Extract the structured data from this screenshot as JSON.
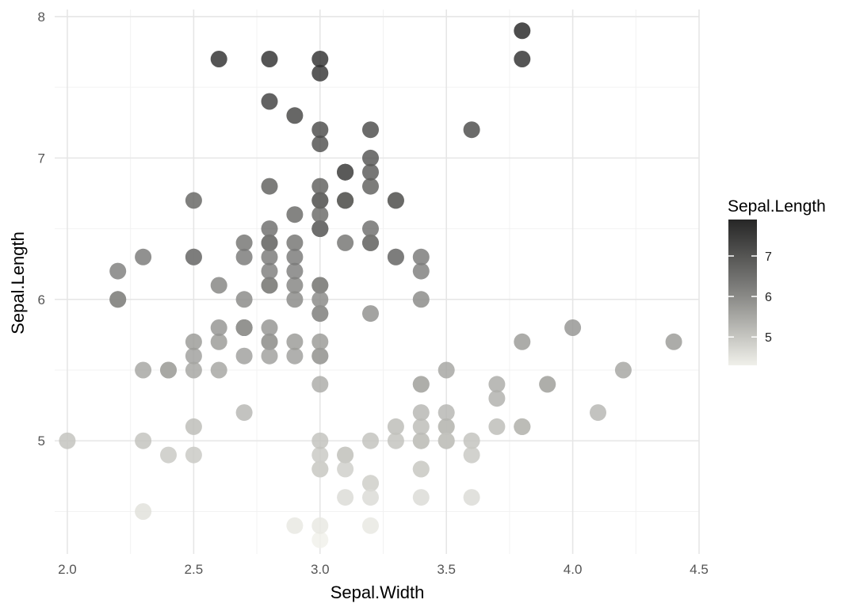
{
  "chart_data": {
    "type": "scatter",
    "title": "",
    "xlabel": "Sepal.Width",
    "ylabel": "Sepal.Length",
    "xlim": [
      1.95,
      4.5
    ],
    "ylim": [
      4.2,
      8.05
    ],
    "x_ticks": [
      "2.0",
      "2.5",
      "3.0",
      "3.5",
      "4.0",
      "4.5"
    ],
    "y_ticks": [
      "5",
      "6",
      "7",
      "8"
    ],
    "grid": true,
    "legend": {
      "title": "Sepal.Length",
      "placement": "right",
      "type": "continuous-gradient",
      "range": [
        4.3,
        7.9
      ],
      "ticks": [
        "5",
        "6",
        "7"
      ],
      "color_low": "#f0f0ea",
      "color_high": "#262626"
    },
    "point_opacity": 0.82,
    "points": [
      [
        3.5,
        5.1
      ],
      [
        3.0,
        4.9
      ],
      [
        3.2,
        4.7
      ],
      [
        3.1,
        4.6
      ],
      [
        3.6,
        5.0
      ],
      [
        3.9,
        5.4
      ],
      [
        3.4,
        4.6
      ],
      [
        3.4,
        5.0
      ],
      [
        2.9,
        4.4
      ],
      [
        3.1,
        4.9
      ],
      [
        3.7,
        5.4
      ],
      [
        3.4,
        4.8
      ],
      [
        3.0,
        4.8
      ],
      [
        3.0,
        4.3
      ],
      [
        4.0,
        5.8
      ],
      [
        4.4,
        5.7
      ],
      [
        3.9,
        5.4
      ],
      [
        3.5,
        5.1
      ],
      [
        3.8,
        5.7
      ],
      [
        3.8,
        5.1
      ],
      [
        3.4,
        5.4
      ],
      [
        3.7,
        5.1
      ],
      [
        3.6,
        4.6
      ],
      [
        3.3,
        5.1
      ],
      [
        3.4,
        4.8
      ],
      [
        3.0,
        5.0
      ],
      [
        3.4,
        5.0
      ],
      [
        3.5,
        5.2
      ],
      [
        3.4,
        5.2
      ],
      [
        3.2,
        4.7
      ],
      [
        3.1,
        4.8
      ],
      [
        3.4,
        5.4
      ],
      [
        4.1,
        5.2
      ],
      [
        4.2,
        5.5
      ],
      [
        3.1,
        4.9
      ],
      [
        3.2,
        5.0
      ],
      [
        3.5,
        5.5
      ],
      [
        3.6,
        4.9
      ],
      [
        3.0,
        4.4
      ],
      [
        3.4,
        5.1
      ],
      [
        3.5,
        5.0
      ],
      [
        2.3,
        4.5
      ],
      [
        3.2,
        4.4
      ],
      [
        3.5,
        5.0
      ],
      [
        3.8,
        5.1
      ],
      [
        3.0,
        4.8
      ],
      [
        3.8,
        5.1
      ],
      [
        3.2,
        4.6
      ],
      [
        3.7,
        5.3
      ],
      [
        3.3,
        5.0
      ],
      [
        3.2,
        7.0
      ],
      [
        3.2,
        6.4
      ],
      [
        3.1,
        6.9
      ],
      [
        2.3,
        5.5
      ],
      [
        2.8,
        6.5
      ],
      [
        2.8,
        5.7
      ],
      [
        3.3,
        6.3
      ],
      [
        2.4,
        4.9
      ],
      [
        2.9,
        6.6
      ],
      [
        2.7,
        5.2
      ],
      [
        2.0,
        5.0
      ],
      [
        3.0,
        5.9
      ],
      [
        2.2,
        6.0
      ],
      [
        2.9,
        6.1
      ],
      [
        2.9,
        5.6
      ],
      [
        3.1,
        6.7
      ],
      [
        3.0,
        5.6
      ],
      [
        2.7,
        5.8
      ],
      [
        2.2,
        6.2
      ],
      [
        2.5,
        5.6
      ],
      [
        3.2,
        5.9
      ],
      [
        2.8,
        6.1
      ],
      [
        2.5,
        6.3
      ],
      [
        2.8,
        6.1
      ],
      [
        2.9,
        6.4
      ],
      [
        3.0,
        6.6
      ],
      [
        2.8,
        6.8
      ],
      [
        3.0,
        6.7
      ],
      [
        2.9,
        6.0
      ],
      [
        2.6,
        5.7
      ],
      [
        2.4,
        5.5
      ],
      [
        2.4,
        5.5
      ],
      [
        2.7,
        5.8
      ],
      [
        2.7,
        6.0
      ],
      [
        3.0,
        5.4
      ],
      [
        3.4,
        6.0
      ],
      [
        3.1,
        6.7
      ],
      [
        2.3,
        6.3
      ],
      [
        3.0,
        5.6
      ],
      [
        2.5,
        5.5
      ],
      [
        2.6,
        5.5
      ],
      [
        3.0,
        6.1
      ],
      [
        2.6,
        5.8
      ],
      [
        2.3,
        5.0
      ],
      [
        2.7,
        5.6
      ],
      [
        3.0,
        5.7
      ],
      [
        2.9,
        5.7
      ],
      [
        2.9,
        6.2
      ],
      [
        2.5,
        5.1
      ],
      [
        2.8,
        5.7
      ],
      [
        3.3,
        6.3
      ],
      [
        2.7,
        5.8
      ],
      [
        3.0,
        7.1
      ],
      [
        2.9,
        6.3
      ],
      [
        3.0,
        6.5
      ],
      [
        3.0,
        7.6
      ],
      [
        2.5,
        4.9
      ],
      [
        2.9,
        7.3
      ],
      [
        2.5,
        6.7
      ],
      [
        3.6,
        7.2
      ],
      [
        3.2,
        6.5
      ],
      [
        2.7,
        6.4
      ],
      [
        3.0,
        6.8
      ],
      [
        2.5,
        5.7
      ],
      [
        2.8,
        5.8
      ],
      [
        3.2,
        6.4
      ],
      [
        3.0,
        6.5
      ],
      [
        3.8,
        7.7
      ],
      [
        2.6,
        7.7
      ],
      [
        2.2,
        6.0
      ],
      [
        3.2,
        6.9
      ],
      [
        2.8,
        5.6
      ],
      [
        2.8,
        7.7
      ],
      [
        2.7,
        6.3
      ],
      [
        3.3,
        6.7
      ],
      [
        3.2,
        7.2
      ],
      [
        2.8,
        6.2
      ],
      [
        3.0,
        6.1
      ],
      [
        2.8,
        6.4
      ],
      [
        3.0,
        7.2
      ],
      [
        2.8,
        7.4
      ],
      [
        3.8,
        7.9
      ],
      [
        2.8,
        6.4
      ],
      [
        2.8,
        6.3
      ],
      [
        2.6,
        6.1
      ],
      [
        3.0,
        7.7
      ],
      [
        3.4,
        6.3
      ],
      [
        3.1,
        6.4
      ],
      [
        3.0,
        6.0
      ],
      [
        3.1,
        6.9
      ],
      [
        3.1,
        6.7
      ],
      [
        3.1,
        6.9
      ],
      [
        2.7,
        5.8
      ],
      [
        3.2,
        6.8
      ],
      [
        3.3,
        6.7
      ],
      [
        3.0,
        6.7
      ],
      [
        2.5,
        6.3
      ],
      [
        3.0,
        6.5
      ],
      [
        3.4,
        6.2
      ],
      [
        3.0,
        5.9
      ]
    ]
  }
}
